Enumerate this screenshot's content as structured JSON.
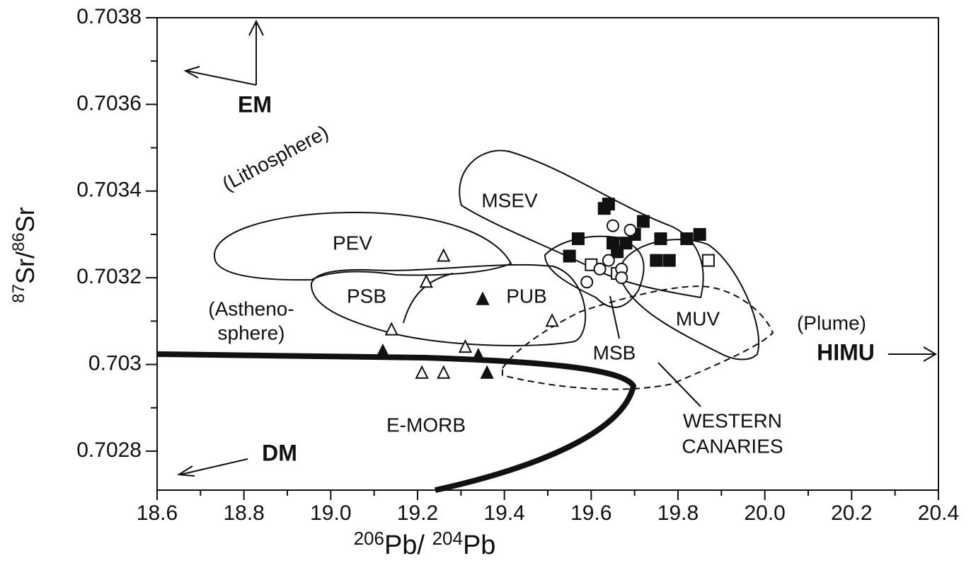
{
  "chart_data": {
    "type": "scatter",
    "xlabel": [
      "206",
      "Pb/ ",
      "204",
      "Pb"
    ],
    "ylabel": [
      "87",
      "Sr/",
      "86",
      "Sr"
    ],
    "xlim": [
      18.6,
      20.4
    ],
    "ylim": [
      0.70271,
      0.7038
    ],
    "xticks": [
      18.6,
      18.8,
      {
        "value": 19.0,
        "label": "19.0"
      },
      19.2,
      19.4,
      19.6,
      19.8,
      {
        "value": 20.0,
        "label": "20.0"
      },
      20.2,
      20.4
    ],
    "yticks": [
      0.7028,
      0.703,
      0.7032,
      0.7034,
      0.7036,
      0.7038
    ],
    "xticks_minor": [
      18.7,
      18.9,
      19.1,
      19.3,
      19.5,
      19.7,
      19.9,
      20.1,
      20.3
    ],
    "yticks_minor": [
      0.7029,
      0.7031,
      0.7033,
      0.7035,
      0.7037
    ],
    "annotations": [
      "EM",
      "(Lithosphere)",
      "PEV",
      "PSB",
      "PUB",
      "MSEV",
      "MUV",
      "MSB",
      "(Plume)",
      "HIMU",
      "(Astheno-",
      "sphere)",
      "E-MORB",
      "DM",
      "WESTERN",
      "CANARIES"
    ],
    "series": [
      {
        "marker": "square",
        "filled": true,
        "color": "#111111",
        "x": [
          19.63,
          19.64,
          19.57,
          19.55,
          19.65,
          19.66,
          19.68,
          19.7,
          19.72,
          19.76,
          19.75,
          19.78,
          19.82,
          19.85
        ],
        "y": [
          0.70336,
          0.70337,
          0.70329,
          0.70325,
          0.70328,
          0.70326,
          0.70328,
          0.7033,
          0.70333,
          0.70329,
          0.70324,
          0.70324,
          0.70329,
          0.7033
        ]
      },
      {
        "marker": "square",
        "filled": false,
        "color": "#111111",
        "x": [
          19.6,
          19.66,
          19.87
        ],
        "y": [
          0.70323,
          0.70321,
          0.70324
        ]
      },
      {
        "marker": "circle",
        "filled": false,
        "color": "#111111",
        "x": [
          19.59,
          19.62,
          19.64,
          19.67,
          19.69,
          19.65,
          19.67
        ],
        "y": [
          0.70319,
          0.70322,
          0.70324,
          0.70322,
          0.70331,
          0.70332,
          0.7032
        ]
      },
      {
        "marker": "triangle",
        "filled": true,
        "color": "#111111",
        "x": [
          19.35,
          19.12,
          19.34,
          19.36
        ],
        "y": [
          0.70315,
          0.70303,
          0.70302,
          0.70298
        ]
      },
      {
        "marker": "triangle",
        "filled": false,
        "color": "#111111",
        "x": [
          19.26,
          19.22,
          19.14,
          19.31,
          19.21,
          19.26,
          19.51
        ],
        "y": [
          0.70325,
          0.70319,
          0.70308,
          0.70304,
          0.70298,
          0.70298,
          0.7031
        ]
      }
    ]
  }
}
